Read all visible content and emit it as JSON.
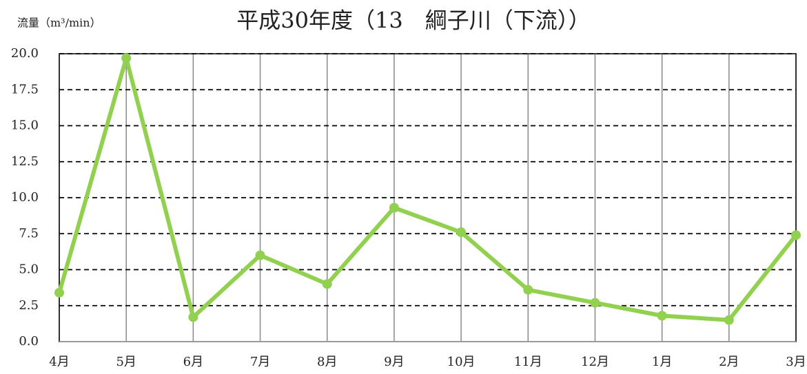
{
  "chart_data": {
    "type": "line",
    "title": "平成30年度（13　綱子川（下流））",
    "y_label": "流量（m³/min）",
    "categories": [
      "4月",
      "5月",
      "6月",
      "7月",
      "8月",
      "9月",
      "10月",
      "11月",
      "12月",
      "1月",
      "2月",
      "3月"
    ],
    "series": [
      {
        "name": "流量",
        "color": "#92d050",
        "values": [
          3.4,
          19.7,
          1.7,
          6.0,
          4.0,
          9.3,
          7.6,
          3.6,
          2.7,
          1.8,
          1.5,
          7.4
        ]
      }
    ],
    "ylim": [
      0,
      20
    ],
    "yticks": [
      {
        "value": 0,
        "label": "0.0"
      },
      {
        "value": 2.5,
        "label": "2.5"
      },
      {
        "value": 5,
        "label": "5.0"
      },
      {
        "value": 7.5,
        "label": "7.5"
      },
      {
        "value": 10,
        "label": "10.0"
      },
      {
        "value": 12.5,
        "label": "12.5"
      },
      {
        "value": 15,
        "label": "15.0"
      },
      {
        "value": 17.5,
        "label": "17.5"
      },
      {
        "value": 20,
        "label": "20.0"
      }
    ],
    "grid": true
  }
}
